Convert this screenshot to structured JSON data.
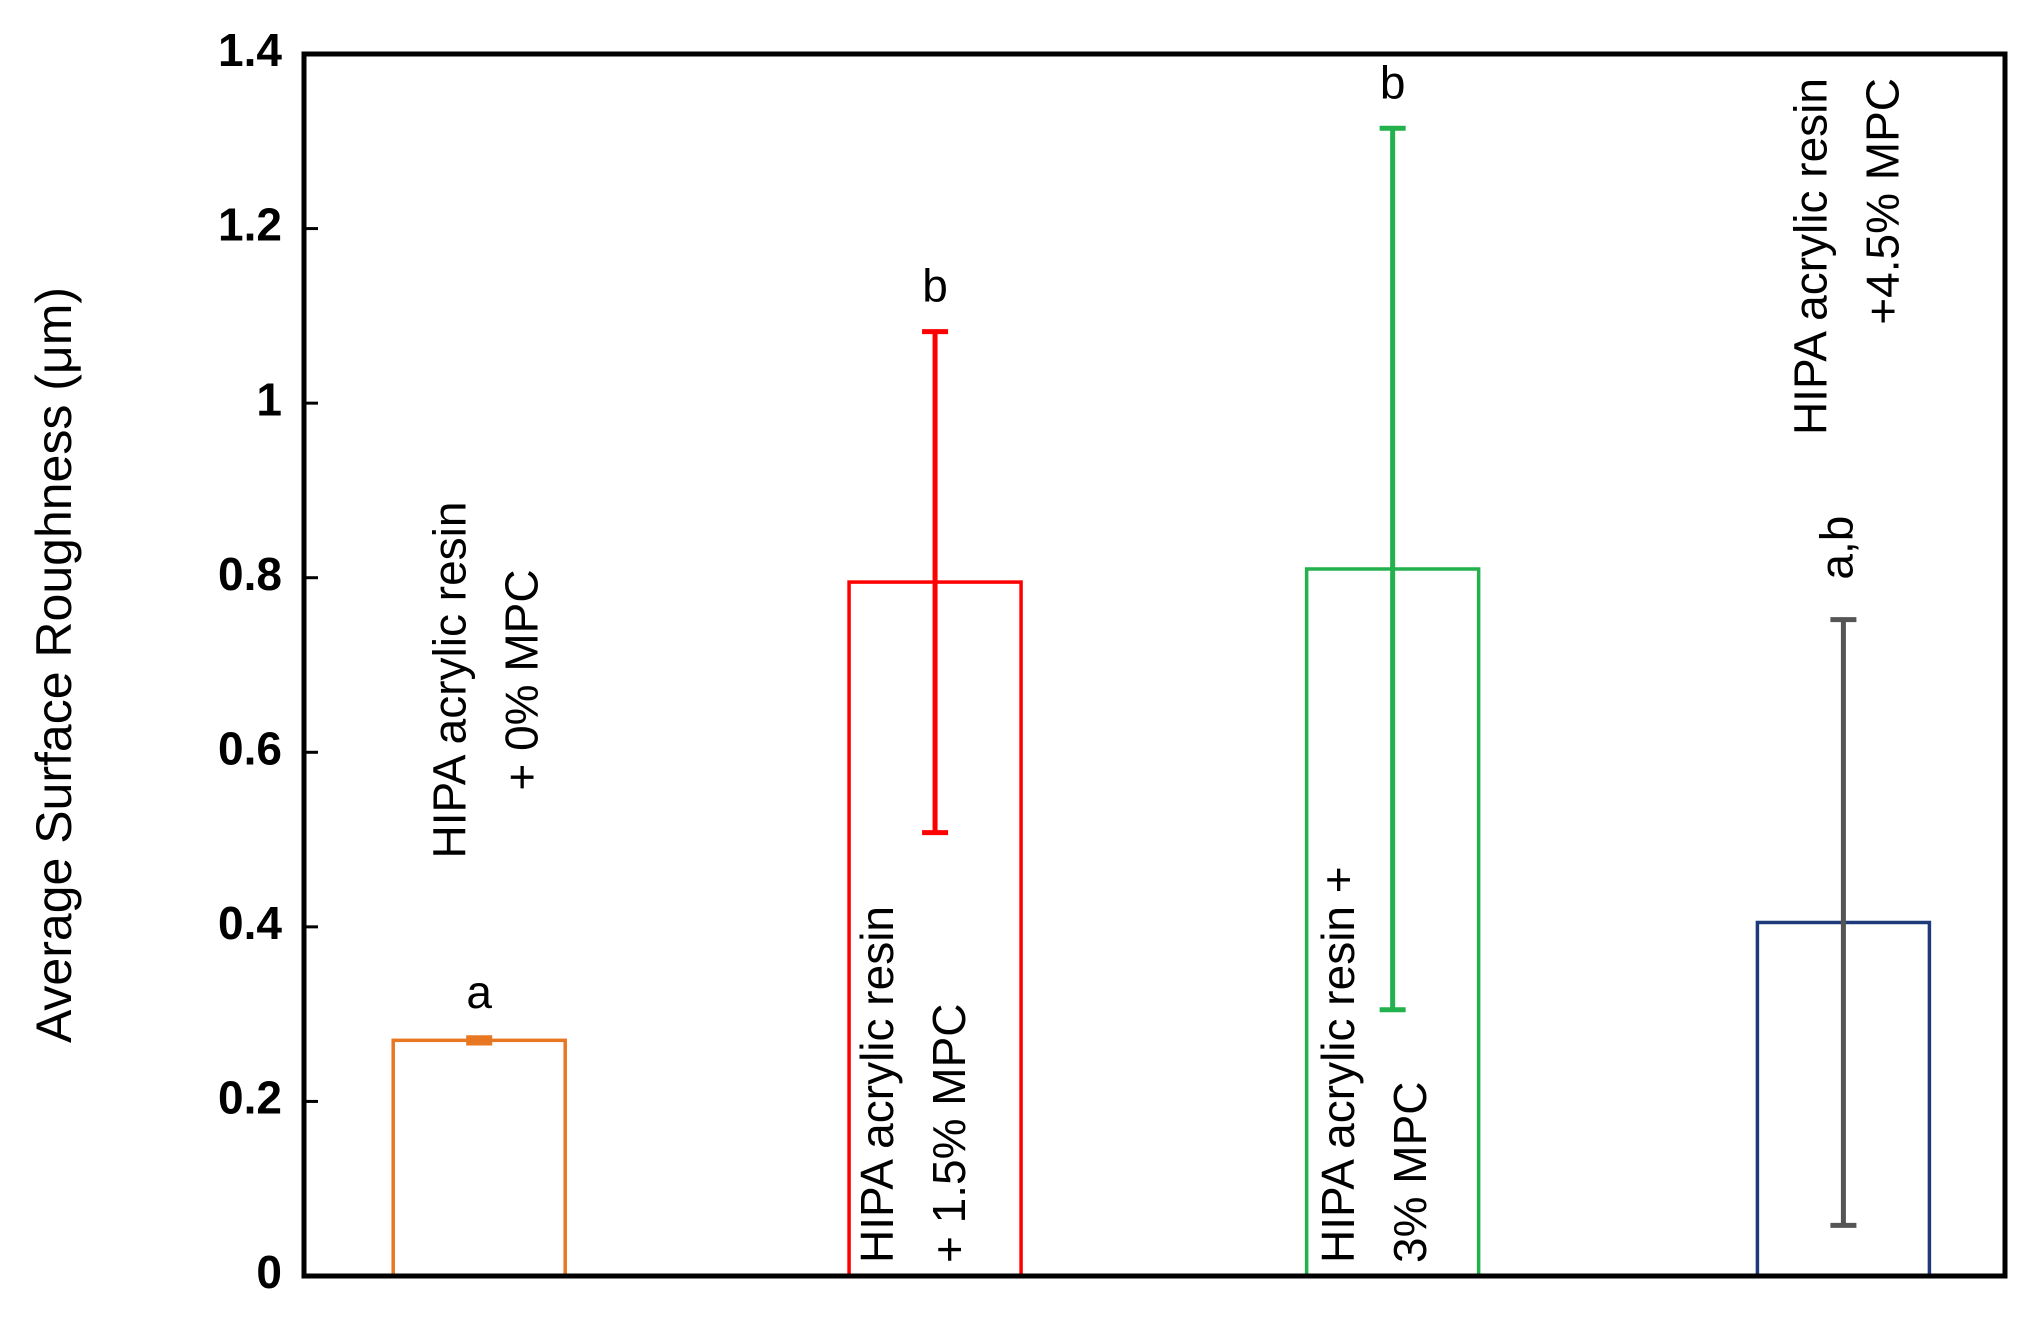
{
  "chart_data": {
    "type": "bar",
    "ylabel": "Average Surface Roughness (μm)",
    "categories": [
      [
        "HIPA acrylic resin",
        "+ 0% MPC"
      ],
      [
        "HIPA acrylic resin",
        "+ 1.5% MPC"
      ],
      [
        "HIPA acrylic resin +",
        "3% MPC"
      ],
      [
        "HIPA acrylic resin",
        "+4.5% MPC"
      ]
    ],
    "values": [
      0.27,
      0.795,
      0.81,
      0.405
    ],
    "errors": [
      0.003,
      0.287,
      0.505,
      0.347
    ],
    "colors": [
      "#e87722",
      "#ff0000",
      "#22b14c",
      "#1f3a7a"
    ],
    "error_colors": [
      "#e87722",
      "#ff0000",
      "#22b14c",
      "#555555"
    ],
    "annotations": [
      "a",
      "b",
      "b",
      "a,b"
    ],
    "ylim": [
      0,
      1.4
    ],
    "yticks": [
      0,
      0.2,
      0.4,
      0.6,
      0.8,
      1,
      1.2,
      1.4
    ]
  }
}
